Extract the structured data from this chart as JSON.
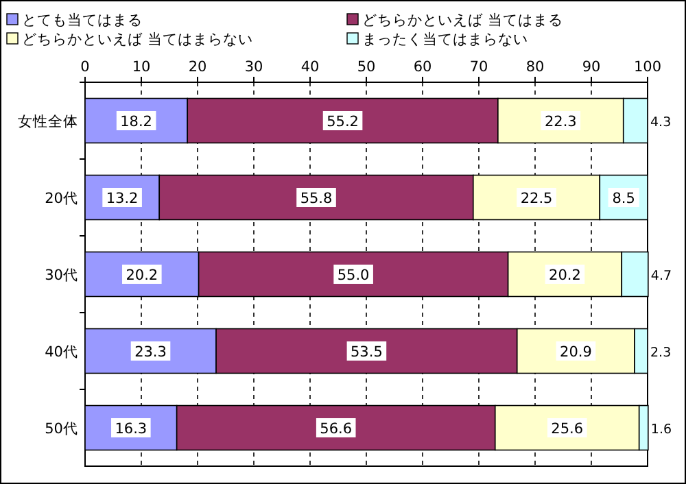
{
  "chart_data": {
    "type": "bar",
    "orientation": "horizontal",
    "stacked": true,
    "categories": [
      "女性全体",
      "20代",
      "30代",
      "40代",
      "50代"
    ],
    "series": [
      {
        "name": "とても当てはまる",
        "color": "#9999ff",
        "values": [
          18.2,
          13.2,
          20.2,
          23.3,
          16.3
        ],
        "value_labels": [
          "18.2",
          "13.2",
          "20.2",
          "23.3",
          "16.3"
        ]
      },
      {
        "name": "どちらかといえば 当てはまる",
        "color": "#993366",
        "values": [
          55.2,
          55.8,
          55.0,
          53.5,
          56.6
        ],
        "value_labels": [
          "55.2",
          "55.8",
          "55.0",
          "53.5",
          "56.6"
        ]
      },
      {
        "name": "どちらかといえば 当てはまらない",
        "color": "#ffffcc",
        "values": [
          22.3,
          22.5,
          20.2,
          20.9,
          25.6
        ],
        "value_labels": [
          "22.3",
          "22.5",
          "20.2",
          "20.9",
          "25.6"
        ]
      },
      {
        "name": "まったく当てはまらない",
        "color": "#ccffff",
        "values": [
          4.3,
          8.5,
          4.7,
          2.3,
          1.6
        ],
        "value_labels": [
          "4.3",
          "8.5",
          "4.7",
          "2.3",
          "1.6"
        ]
      }
    ],
    "xlim": [
      0,
      100
    ],
    "xticks": [
      0,
      10,
      20,
      30,
      40,
      50,
      60,
      70,
      80,
      90,
      100
    ],
    "grid": "x",
    "legend": "top"
  }
}
